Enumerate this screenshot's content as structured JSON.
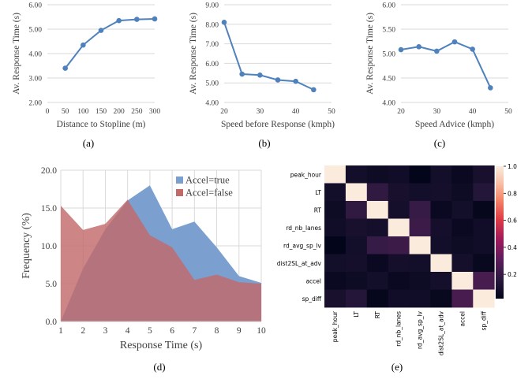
{
  "panel_labels": [
    "(a)",
    "(b)",
    "(c)",
    "(d)",
    "(e)"
  ],
  "chart_data": [
    {
      "id": "a",
      "type": "line",
      "x": [
        50,
        100,
        150,
        200,
        250,
        300
      ],
      "values": [
        3.4,
        4.35,
        4.95,
        5.35,
        5.4,
        5.42
      ],
      "xlabel": "Distance to Stopline (m)",
      "ylabel": "Av. Response Time (s)",
      "xlim": [
        0,
        300
      ],
      "xticks": [
        0,
        50,
        100,
        150,
        200,
        250,
        300
      ],
      "ylim": [
        2,
        6
      ],
      "yticks": [
        "2.00",
        "3.00",
        "4.00",
        "5.00",
        "6.00"
      ],
      "grid": "horizontal",
      "color": "#4f81bd"
    },
    {
      "id": "b",
      "type": "line",
      "x": [
        20,
        25,
        30,
        35,
        40,
        45
      ],
      "values": [
        8.1,
        5.45,
        5.4,
        5.15,
        5.08,
        4.65
      ],
      "xlabel": "Speed before Response (kmph)",
      "ylabel": "Av. Response Time (s)",
      "xlim": [
        20,
        50
      ],
      "xticks": [
        20,
        30,
        40,
        50
      ],
      "ylim": [
        4,
        9
      ],
      "yticks": [
        "4.00",
        "5.00",
        "6.00",
        "7.00",
        "8.00",
        "9.00"
      ],
      "grid": "horizontal",
      "color": "#4f81bd"
    },
    {
      "id": "c",
      "type": "line",
      "x": [
        20,
        25,
        30,
        35,
        40,
        45
      ],
      "values": [
        5.08,
        5.14,
        5.05,
        5.24,
        5.09,
        4.3
      ],
      "xlabel": "Speed Advice (kmph)",
      "ylabel": "Av. Response Time (s)",
      "xlim": [
        20,
        50
      ],
      "xticks": [
        20,
        30,
        40,
        50
      ],
      "ylim": [
        4,
        6
      ],
      "yticks": [
        "4.00",
        "4.50",
        "5.00",
        "5.50",
        "6.00"
      ],
      "grid": "horizontal",
      "color": "#4f81bd"
    },
    {
      "id": "d",
      "type": "area",
      "x": [
        1,
        2,
        3,
        4,
        5,
        6,
        7,
        8,
        9,
        10
      ],
      "series": [
        {
          "name": "Accel=true",
          "color": "#7ba0d0",
          "values": [
            0,
            7,
            12.2,
            16,
            18,
            12.2,
            13.2,
            9.8,
            6,
            5.1
          ]
        },
        {
          "name": "Accel=false",
          "color": "#c26a6a",
          "values": [
            15.3,
            12.1,
            12.9,
            16.1,
            11.4,
            9.8,
            5.5,
            6.2,
            5.2,
            5.0
          ]
        }
      ],
      "xlabel": "Response Time (s)",
      "ylabel": "Frequency (%)",
      "xlim": [
        1,
        10
      ],
      "xticks": [
        "1",
        "2",
        "3",
        "4",
        "5",
        "6",
        "7",
        "8",
        "9",
        "10"
      ],
      "ylim": [
        0,
        20
      ],
      "yticks": [
        "0.0",
        "5.0",
        "10.0",
        "15.0",
        "20.0"
      ],
      "grid": "both",
      "legend": "top-right"
    },
    {
      "id": "e",
      "type": "heatmap",
      "labels": [
        "peak_hour",
        "LT",
        "RT",
        "rd_nb_lanes",
        "rd_avg_sp_lv",
        "dist2SL_at_adv",
        "accel",
        "sp_diff"
      ],
      "matrix": [
        [
          1.0,
          0.08,
          0.06,
          0.07,
          0.02,
          0.08,
          0.05,
          0.1
        ],
        [
          0.08,
          1.0,
          0.18,
          0.1,
          0.08,
          0.09,
          0.06,
          0.14
        ],
        [
          0.06,
          0.18,
          1.0,
          0.09,
          0.2,
          0.05,
          0.08,
          0.03
        ],
        [
          0.07,
          0.1,
          0.09,
          1.0,
          0.22,
          0.09,
          0.05,
          0.07
        ],
        [
          0.02,
          0.08,
          0.2,
          0.22,
          1.0,
          0.08,
          0.06,
          0.07
        ],
        [
          0.08,
          0.09,
          0.05,
          0.09,
          0.08,
          1.0,
          0.09,
          0.04
        ],
        [
          0.05,
          0.06,
          0.08,
          0.05,
          0.06,
          0.09,
          1.0,
          0.25
        ],
        [
          0.1,
          0.14,
          0.03,
          0.07,
          0.07,
          0.04,
          0.25,
          1.0
        ]
      ],
      "colorbar_ticks": [
        "0.2",
        "0.4",
        "0.6",
        "0.8",
        "1.0"
      ],
      "colorbar_range": [
        0.02,
        1.0
      ],
      "colormap": "rocket"
    }
  ]
}
